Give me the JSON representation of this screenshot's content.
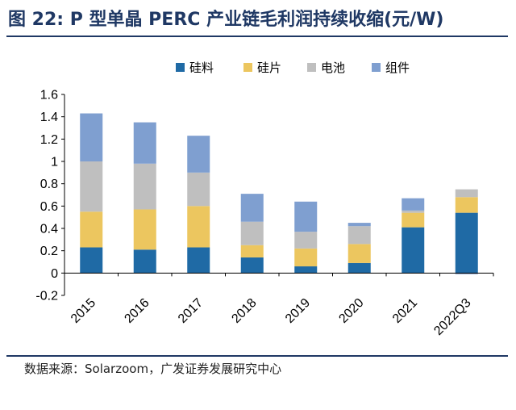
{
  "title": "图 22:  P 型单晶 PERC 产业链毛利润持续收缩(元/W)",
  "source": "数据来源：Solarzoom，广发证券发展研究中心",
  "colors": {
    "silicon": "#1f6aa5",
    "wafer": "#ecc65f",
    "cell": "#bfbfbf",
    "module": "#7f9fd0",
    "title": "#1f3864"
  },
  "chart_data": {
    "type": "bar",
    "stacked": true,
    "categories": [
      "2015",
      "2016",
      "2017",
      "2018",
      "2019",
      "2020",
      "2021",
      "2022Q3"
    ],
    "series": [
      {
        "name": "硅料",
        "values": [
          0.23,
          0.21,
          0.23,
          0.14,
          0.06,
          0.09,
          0.41,
          0.54
        ]
      },
      {
        "name": "硅片",
        "values": [
          0.32,
          0.36,
          0.37,
          0.11,
          0.16,
          0.17,
          0.13,
          0.14
        ]
      },
      {
        "name": "电池",
        "values": [
          0.45,
          0.41,
          0.3,
          0.21,
          0.15,
          0.16,
          0.02,
          0.07
        ]
      },
      {
        "name": "组件",
        "values": [
          0.43,
          0.37,
          0.33,
          0.25,
          0.27,
          0.03,
          0.11,
          -0.01
        ]
      }
    ],
    "yticks": [
      "-0.2",
      "0",
      "0.2",
      "0.4",
      "0.6",
      "0.8",
      "1",
      "1.2",
      "1.4",
      "1.6"
    ],
    "ylim": [
      -0.2,
      1.6
    ],
    "legend_position": "top",
    "grid": false
  }
}
